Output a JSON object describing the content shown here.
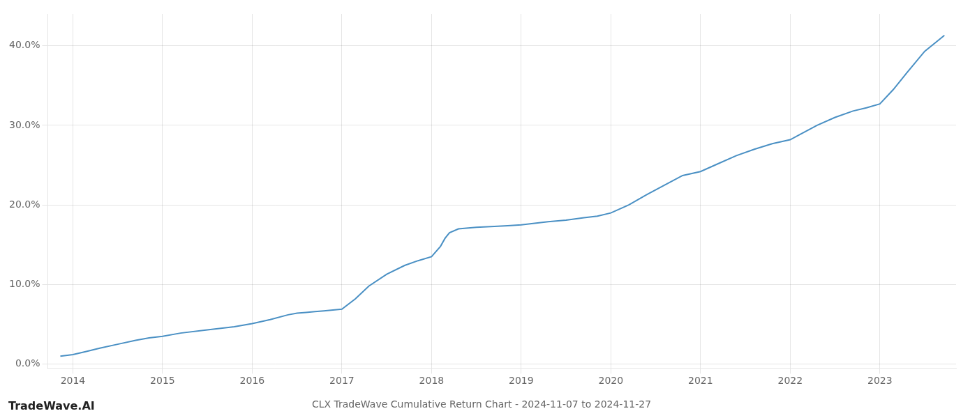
{
  "chart_data": {
    "type": "line",
    "title": "CLX TradeWave Cumulative Return Chart - 2024-11-07 to 2024-11-27",
    "annotations": [
      {
        "text": "TradeWave.AI"
      }
    ],
    "color": "#4a90c4",
    "grid": true,
    "xlim": [
      2013.72,
      2023.85
    ],
    "xticks": [
      2014,
      2015,
      2016,
      2017,
      2018,
      2019,
      2020,
      2021,
      2022,
      2023
    ],
    "ylim": [
      -0.005,
      0.44
    ],
    "yticks": [
      {
        "value": 0.0,
        "label": "0.0%"
      },
      {
        "value": 0.1,
        "label": "10.0%"
      },
      {
        "value": 0.2,
        "label": "20.0%"
      },
      {
        "value": 0.3,
        "label": "30.0%"
      },
      {
        "value": 0.4,
        "label": "40.0%"
      }
    ],
    "x": [
      2013.86,
      2014.0,
      2014.15,
      2014.3,
      2014.5,
      2014.7,
      2014.85,
      2015.0,
      2015.2,
      2015.5,
      2015.8,
      2016.0,
      2016.2,
      2016.4,
      2016.5,
      2016.6,
      2016.7,
      2016.8,
      2016.9,
      2017.0,
      2017.15,
      2017.3,
      2017.5,
      2017.7,
      2017.85,
      2018.0,
      2018.1,
      2018.15,
      2018.2,
      2018.3,
      2018.5,
      2018.7,
      2018.85,
      2019.0,
      2019.15,
      2019.3,
      2019.5,
      2019.7,
      2019.85,
      2020.0,
      2020.2,
      2020.4,
      2020.6,
      2020.8,
      2021.0,
      2021.2,
      2021.4,
      2021.6,
      2021.8,
      2022.0,
      2022.1,
      2022.3,
      2022.5,
      2022.7,
      2022.85,
      2023.0,
      2023.15,
      2023.3,
      2023.5,
      2023.72
    ],
    "values": [
      0.01,
      0.012,
      0.016,
      0.02,
      0.025,
      0.03,
      0.033,
      0.035,
      0.039,
      0.043,
      0.047,
      0.051,
      0.056,
      0.062,
      0.064,
      0.065,
      0.066,
      0.067,
      0.068,
      0.069,
      0.082,
      0.098,
      0.113,
      0.124,
      0.13,
      0.135,
      0.148,
      0.158,
      0.165,
      0.17,
      0.172,
      0.173,
      0.174,
      0.175,
      0.177,
      0.179,
      0.181,
      0.184,
      0.186,
      0.19,
      0.2,
      0.213,
      0.225,
      0.237,
      0.242,
      0.252,
      0.262,
      0.27,
      0.277,
      0.282,
      0.288,
      0.3,
      0.31,
      0.318,
      0.322,
      0.327,
      0.345,
      0.366,
      0.393,
      0.413
    ]
  }
}
